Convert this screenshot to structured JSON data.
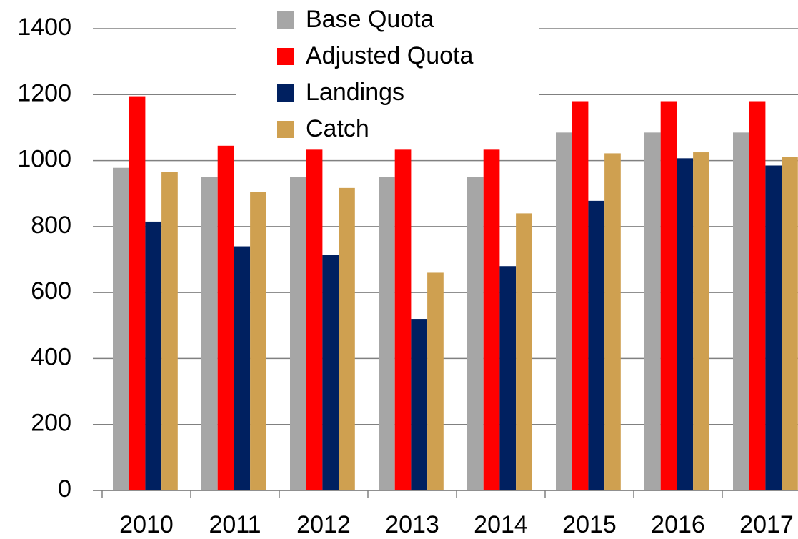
{
  "chart_data": {
    "type": "bar",
    "categories": [
      "2010",
      "2011",
      "2012",
      "2013",
      "2014",
      "2015",
      "2016",
      "2017"
    ],
    "series": [
      {
        "name": "Base Quota",
        "color": "#a6a6a6",
        "values": [
          978,
          950,
          950,
          950,
          950,
          1085,
          1085,
          1085
        ]
      },
      {
        "name": "Adjusted Quota",
        "color": "#ff0000",
        "values": [
          1195,
          1045,
          1033,
          1033,
          1033,
          1180,
          1180,
          1180
        ]
      },
      {
        "name": "Landings",
        "color": "#002060",
        "values": [
          815,
          740,
          713,
          520,
          680,
          878,
          1007,
          985
        ]
      },
      {
        "name": "Catch",
        "color": "#cfa050",
        "values": [
          965,
          905,
          917,
          660,
          840,
          1022,
          1025,
          1010
        ]
      }
    ],
    "ylim": [
      0,
      1400
    ],
    "yticks": [
      0,
      200,
      400,
      600,
      800,
      1000,
      1200,
      1400
    ],
    "grid": true,
    "legend": "top"
  }
}
